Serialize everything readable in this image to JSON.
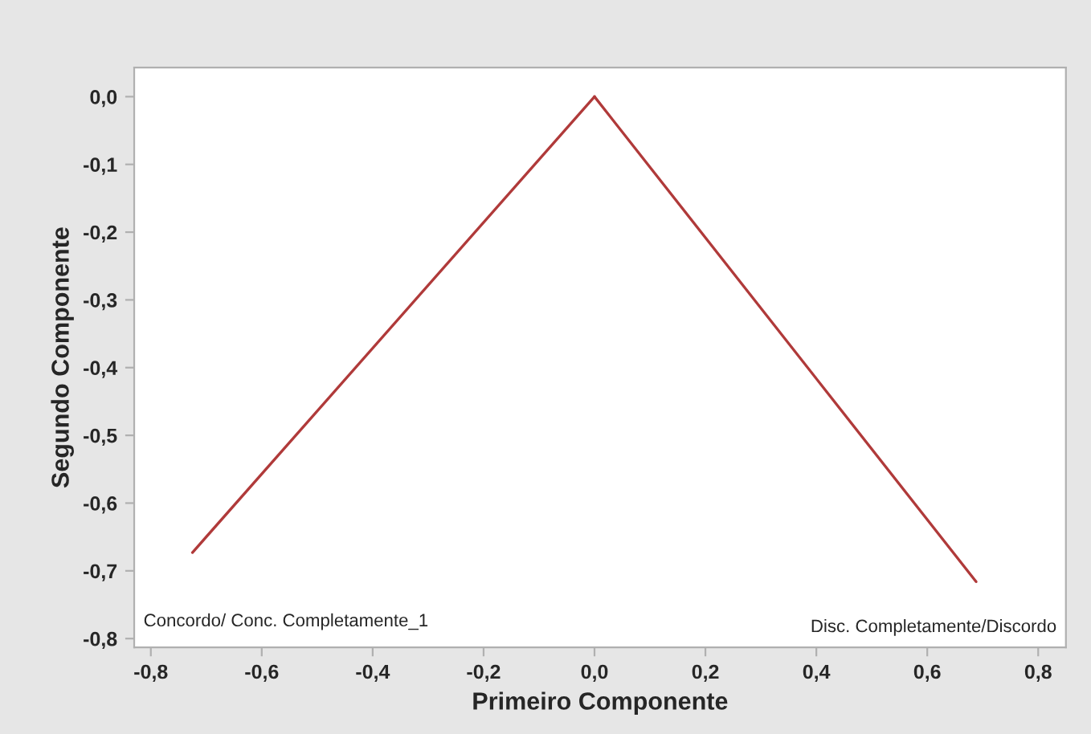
{
  "chart_data": {
    "type": "line",
    "xlabel": "Primeiro Componente",
    "ylabel": "Segundo Componente",
    "series": [
      {
        "x": [
          0,
          -0.725
        ],
        "values": [
          0,
          -0.673
        ],
        "color": "#b03a3a"
      },
      {
        "x": [
          0,
          0.688
        ],
        "values": [
          0,
          -0.716
        ],
        "color": "#b03a3a"
      }
    ],
    "annotations": [
      "Concordo/ Conc. Completamente_1",
      "Disc. Completamente/Discordo"
    ],
    "xlim": [
      -0.83,
      0.85
    ],
    "ylim": [
      -0.813,
      0.043
    ],
    "xticks": [
      {
        "value": -0.8,
        "label": "-0,8"
      },
      {
        "value": -0.6,
        "label": "-0,6"
      },
      {
        "value": -0.4,
        "label": "-0,4"
      },
      {
        "value": -0.2,
        "label": "-0,2"
      },
      {
        "value": 0,
        "label": "0,0"
      },
      {
        "value": 0.2,
        "label": "0,2"
      },
      {
        "value": 0.4,
        "label": "0,4"
      },
      {
        "value": 0.6,
        "label": "0,6"
      },
      {
        "value": 0.8,
        "label": "0,8"
      }
    ],
    "yticks": [
      {
        "value": 0,
        "label": "0,0"
      },
      {
        "value": -0.1,
        "label": "-0,1"
      },
      {
        "value": -0.2,
        "label": "-0,2"
      },
      {
        "value": -0.3,
        "label": "-0,3"
      },
      {
        "value": -0.4,
        "label": "-0,4"
      },
      {
        "value": -0.5,
        "label": "-0,5"
      },
      {
        "value": -0.6,
        "label": "-0,6"
      },
      {
        "value": -0.7,
        "label": "-0,7"
      },
      {
        "value": -0.8,
        "label": "-0,8"
      }
    ],
    "grid": false,
    "legend": false
  }
}
